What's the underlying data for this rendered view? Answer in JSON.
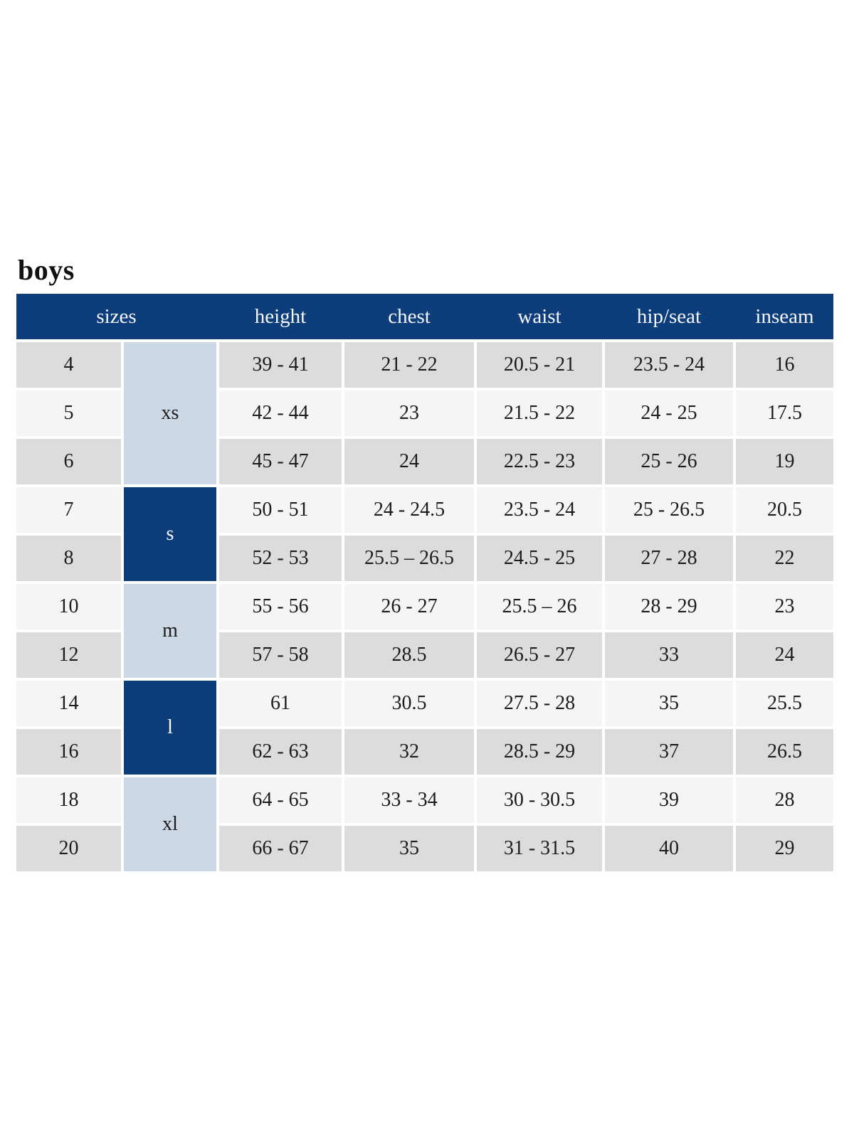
{
  "page": {
    "title": "boys"
  },
  "table": {
    "columns": [
      {
        "key": "sizes",
        "label": "sizes"
      },
      {
        "key": "height",
        "label": "height"
      },
      {
        "key": "chest",
        "label": "chest"
      },
      {
        "key": "waist",
        "label": "waist"
      },
      {
        "key": "hip_seat",
        "label": "hip/seat"
      },
      {
        "key": "inseam",
        "label": "inseam"
      }
    ],
    "size_groups": [
      {
        "label": "xs",
        "row_span": 3
      },
      {
        "label": "s",
        "row_span": 2
      },
      {
        "label": "m",
        "row_span": 2
      },
      {
        "label": "l",
        "row_span": 2
      },
      {
        "label": "xl",
        "row_span": 2
      }
    ],
    "rows": [
      {
        "size": "4",
        "height": "39 - 41",
        "chest": "21 - 22",
        "waist": "20.5 - 21",
        "hip_seat": "23.5 - 24",
        "inseam": "16"
      },
      {
        "size": "5",
        "height": "42 - 44",
        "chest": "23",
        "waist": "21.5 - 22",
        "hip_seat": "24 - 25",
        "inseam": "17.5"
      },
      {
        "size": "6",
        "height": "45 - 47",
        "chest": "24",
        "waist": "22.5 - 23",
        "hip_seat": "25 - 26",
        "inseam": "19"
      },
      {
        "size": "7",
        "height": "50 - 51",
        "chest": "24 - 24.5",
        "waist": "23.5 - 24",
        "hip_seat": "25 - 26.5",
        "inseam": "20.5"
      },
      {
        "size": "8",
        "height": "52 - 53",
        "chest": "25.5 – 26.5",
        "waist": "24.5 - 25",
        "hip_seat": "27 - 28",
        "inseam": "22"
      },
      {
        "size": "10",
        "height": "55 - 56",
        "chest": "26 - 27",
        "waist": "25.5 – 26",
        "hip_seat": "28 - 29",
        "inseam": "23"
      },
      {
        "size": "12",
        "height": "57 - 58",
        "chest": "28.5",
        "waist": "26.5 - 27",
        "hip_seat": "33",
        "inseam": "24"
      },
      {
        "size": "14",
        "height": "61",
        "chest": "30.5",
        "waist": "27.5 - 28",
        "hip_seat": "35",
        "inseam": "25.5"
      },
      {
        "size": "16",
        "height": "62 - 63",
        "chest": "32",
        "waist": "28.5 - 29",
        "hip_seat": "37",
        "inseam": "26.5"
      },
      {
        "size": "18",
        "height": "64 - 65",
        "chest": "33 - 34",
        "waist": "30 - 30.5",
        "hip_seat": "39",
        "inseam": "28"
      },
      {
        "size": "20",
        "height": "66 - 67",
        "chest": "35",
        "waist": "31 - 31.5",
        "hip_seat": "40",
        "inseam": "29"
      }
    ],
    "colors": {
      "header_bg": "#0e3d7b",
      "header_text": "#f5f8fb",
      "row_gray": "#dcdcdc",
      "row_light": "#f5f5f6",
      "group_light_blue": "#cdd8e5",
      "group_navy": "#0e3d7b",
      "body_text": "#1c1c1c"
    }
  }
}
